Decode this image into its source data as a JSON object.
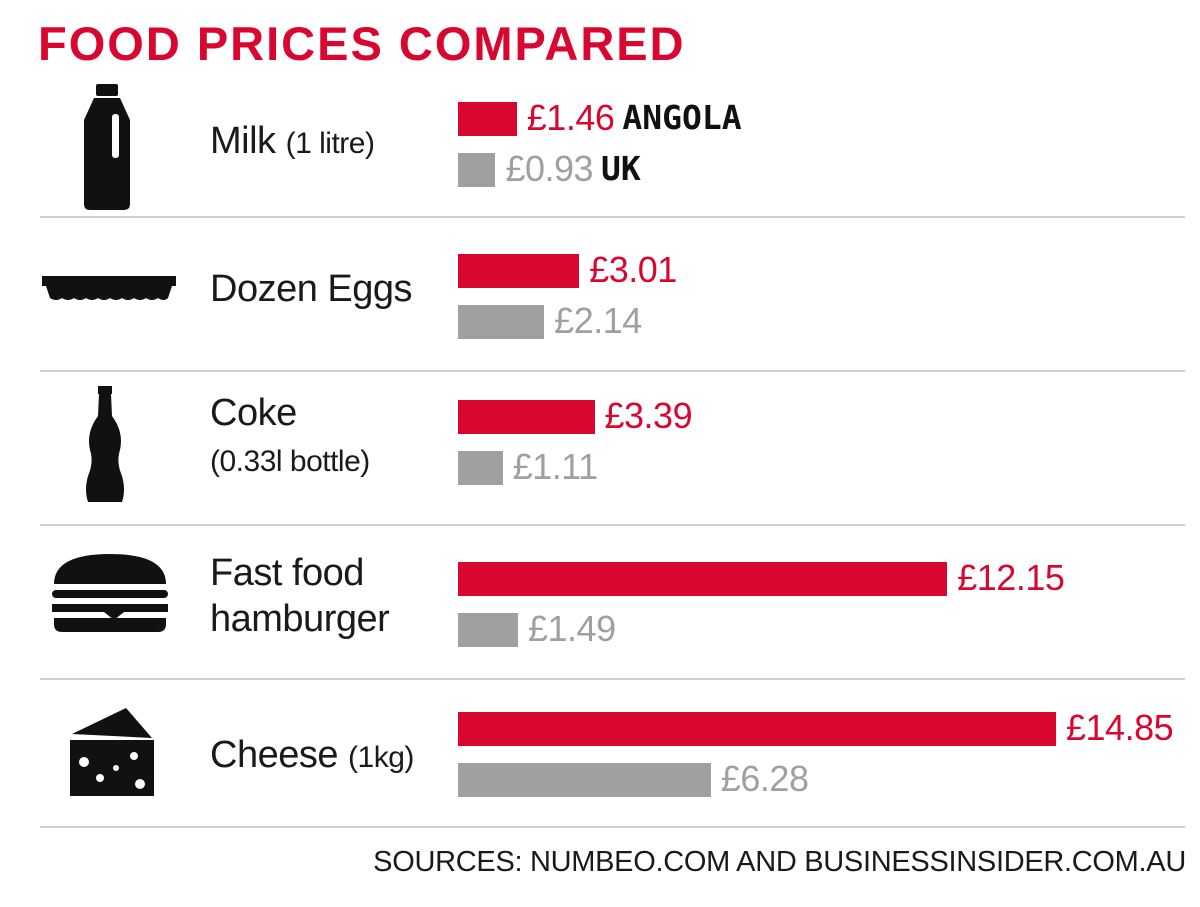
{
  "chart_data": {
    "type": "bar",
    "title": "FOOD PRICES COMPARED",
    "categories": [
      "Milk (1 litre)",
      "Dozen Eggs",
      "Coke (0.33l bottle)",
      "Fast food hamburger",
      "Cheese (1kg)"
    ],
    "series": [
      {
        "name": "ANGOLA",
        "values": [
          1.46,
          3.01,
          3.39,
          12.15,
          14.85
        ]
      },
      {
        "name": "UK",
        "values": [
          0.93,
          2.14,
          1.11,
          1.49,
          6.28
        ]
      }
    ],
    "value_labels": {
      "ANGOLA": [
        "£1.46",
        "£3.01",
        "£3.39",
        "£12.15",
        "£14.85"
      ],
      "UK": [
        "£0.93",
        "£2.14",
        "£1.11",
        "£1.49",
        "£6.28"
      ]
    },
    "orientation": "horizontal",
    "legend": "inline on first row",
    "xlim": [
      0,
      14.85
    ],
    "grid": false
  },
  "items": [
    {
      "label": "Milk ",
      "label_small": "(1 litre)",
      "icon": "milk-bottle-icon"
    },
    {
      "label": "Dozen Eggs",
      "label_small": "",
      "icon": "egg-carton-icon"
    },
    {
      "label": "Coke",
      "label_small": "(0.33l bottle)",
      "icon": "coke-bottle-icon"
    },
    {
      "label": "Fast food",
      "label_small": "hamburger",
      "icon": "hamburger-icon"
    },
    {
      "label": "Cheese ",
      "label_small": "(1kg)",
      "icon": "cheese-icon"
    }
  ],
  "source": "SOURCES: NUMBEO.COM AND BUSINESSINSIDER.COM.AU",
  "colors": {
    "title": "#d9072f",
    "angola": "#d9072f",
    "uk": "#a0a0a0",
    "text": "#1a1a1a"
  }
}
